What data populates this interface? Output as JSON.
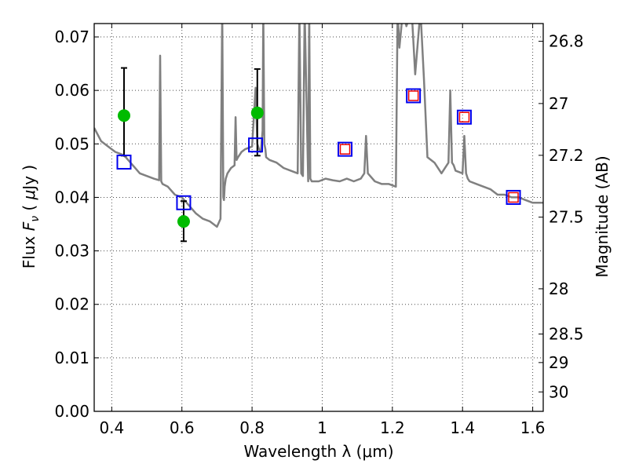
{
  "chart_data": {
    "type": "scatter",
    "xlabel": "Wavelength  λ (μm)",
    "ylabel": "Flux  F_ν  ( μJy )",
    "ylabel_parts": {
      "pre": "Flux ",
      "var": "F",
      "sub": "ν",
      "mid": " ( ",
      "mu": "μ",
      "post": "Jy )"
    },
    "ylabel_right": "Magnitude (AB)",
    "xlim": [
      0.35,
      1.63
    ],
    "ylim": [
      0.0,
      0.0725
    ],
    "x_ticks": [
      0.4,
      0.6,
      0.8,
      1.0,
      1.2,
      1.4,
      1.6
    ],
    "x_tick_labels": [
      "0.4",
      "0.6",
      "0.8",
      "1",
      "1.2",
      "1.4",
      "1.6"
    ],
    "y_ticks": [
      0.0,
      0.01,
      0.02,
      0.03,
      0.04,
      0.05,
      0.06,
      0.07
    ],
    "y_tick_labels": [
      "0.00",
      "0.01",
      "0.02",
      "0.03",
      "0.04",
      "0.05",
      "0.06",
      "0.07"
    ],
    "right_ticks": [
      {
        "mag": 26.8,
        "label": "26.8"
      },
      {
        "mag": 27.0,
        "label": "27"
      },
      {
        "mag": 27.2,
        "label": "27.2"
      },
      {
        "mag": 27.5,
        "label": "27.5"
      },
      {
        "mag": 28.0,
        "label": "28"
      },
      {
        "mag": 28.5,
        "label": "28.5"
      },
      {
        "mag": 29.0,
        "label": "29"
      },
      {
        "mag": 30.0,
        "label": "30"
      }
    ],
    "grid": true,
    "series": [
      {
        "kind": "model_spectrum",
        "color": "#808080",
        "x": [
          0.35,
          0.37,
          0.39,
          0.41,
          0.43,
          0.44,
          0.46,
          0.48,
          0.5,
          0.52,
          0.535,
          0.538,
          0.541,
          0.545,
          0.56,
          0.58,
          0.6,
          0.62,
          0.64,
          0.66,
          0.68,
          0.7,
          0.71,
          0.715,
          0.718,
          0.72,
          0.722,
          0.725,
          0.73,
          0.74,
          0.75,
          0.753,
          0.756,
          0.76,
          0.77,
          0.78,
          0.8,
          0.81,
          0.815,
          0.82,
          0.825,
          0.83,
          0.832,
          0.835,
          0.838,
          0.84,
          0.85,
          0.87,
          0.89,
          0.91,
          0.93,
          0.935,
          0.94,
          0.945,
          0.95,
          0.96,
          0.963,
          0.966,
          0.97,
          0.99,
          1.01,
          1.03,
          1.05,
          1.07,
          1.09,
          1.11,
          1.12,
          1.125,
          1.13,
          1.15,
          1.17,
          1.19,
          1.21,
          1.215,
          1.22,
          1.23,
          1.24,
          1.255,
          1.265,
          1.28,
          1.29,
          1.3,
          1.32,
          1.34,
          1.36,
          1.365,
          1.37,
          1.375,
          1.38,
          1.4,
          1.405,
          1.41,
          1.415,
          1.42,
          1.44,
          1.46,
          1.48,
          1.5,
          1.52,
          1.54,
          1.56,
          1.58,
          1.6,
          1.63
        ],
        "y": [
          0.053,
          0.0505,
          0.0495,
          0.0485,
          0.048,
          0.0475,
          0.046,
          0.0445,
          0.044,
          0.0435,
          0.0432,
          0.0665,
          0.043,
          0.0425,
          0.042,
          0.0405,
          0.04,
          0.0385,
          0.037,
          0.036,
          0.0355,
          0.0345,
          0.036,
          0.075,
          0.04,
          0.0395,
          0.042,
          0.0435,
          0.0445,
          0.0455,
          0.046,
          0.055,
          0.047,
          0.0475,
          0.0485,
          0.049,
          0.0495,
          0.0605,
          0.05,
          0.049,
          0.0485,
          0.0525,
          0.075,
          0.05,
          0.049,
          0.0475,
          0.047,
          0.0465,
          0.0455,
          0.045,
          0.0445,
          0.075,
          0.0445,
          0.044,
          0.075,
          0.043,
          0.075,
          0.0435,
          0.043,
          0.043,
          0.0435,
          0.0432,
          0.043,
          0.0435,
          0.043,
          0.0435,
          0.0445,
          0.0515,
          0.0445,
          0.043,
          0.0425,
          0.0425,
          0.042,
          0.075,
          0.068,
          0.075,
          0.072,
          0.075,
          0.063,
          0.075,
          0.062,
          0.0475,
          0.0465,
          0.0445,
          0.0465,
          0.06,
          0.0465,
          0.046,
          0.045,
          0.0445,
          0.0515,
          0.0445,
          0.0435,
          0.043,
          0.0425,
          0.042,
          0.0415,
          0.0405,
          0.0405,
          0.04,
          0.04,
          0.0395,
          0.039,
          0.039
        ]
      },
      {
        "kind": "observed",
        "color": "#00bb00",
        "x": [
          0.435,
          0.605,
          0.815
        ],
        "y": [
          0.0553,
          0.0355,
          0.0558
        ],
        "yerr_low": [
          0.0478,
          0.0318,
          0.0478
        ],
        "yerr_high": [
          0.0642,
          0.0393,
          0.064
        ]
      },
      {
        "kind": "model_photometry",
        "color": "#0000ee",
        "x": [
          0.435,
          0.605,
          0.81,
          1.065,
          1.26,
          1.405,
          1.545
        ],
        "y": [
          0.0466,
          0.039,
          0.0498,
          0.049,
          0.059,
          0.055,
          0.04
        ]
      },
      {
        "kind": "predicted_photometry",
        "color": "#ee0000",
        "x": [
          1.065,
          1.26,
          1.405,
          1.545
        ],
        "y": [
          0.049,
          0.059,
          0.055,
          0.04
        ]
      }
    ]
  }
}
